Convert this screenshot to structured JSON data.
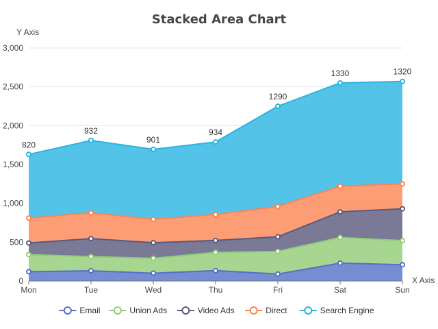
{
  "chart_data": {
    "type": "area",
    "stacked": true,
    "title": "Stacked Area Chart",
    "xlabel": "X Axis",
    "ylabel": "Y Axis",
    "categories": [
      "Mon",
      "Tue",
      "Wed",
      "Thu",
      "Fri",
      "Sat",
      "Sun"
    ],
    "ylim": [
      0,
      3000
    ],
    "yticks": [
      0,
      500,
      1000,
      1500,
      2000,
      2500,
      3000
    ],
    "ytick_labels": [
      "0",
      "500",
      "1,000",
      "1,500",
      "2,000",
      "2,500",
      "3,000"
    ],
    "grid": true,
    "legend_position": "bottom",
    "series": [
      {
        "name": "Email",
        "color": "#5470c6",
        "values": [
          120,
          132,
          101,
          134,
          90,
          230,
          210
        ]
      },
      {
        "name": "Union Ads",
        "color": "#91cc75",
        "values": [
          220,
          182,
          191,
          234,
          290,
          330,
          310
        ]
      },
      {
        "name": "Video Ads",
        "color": "#59597d",
        "values": [
          150,
          232,
          201,
          154,
          190,
          330,
          410
        ]
      },
      {
        "name": "Direct",
        "color": "#fc8452",
        "values": [
          320,
          332,
          301,
          334,
          390,
          330,
          320
        ]
      },
      {
        "name": "Search Engine",
        "color": "#28b4e2",
        "values": [
          820,
          932,
          901,
          934,
          1290,
          1330,
          1320
        ]
      }
    ],
    "data_labels_series": "Search Engine"
  }
}
